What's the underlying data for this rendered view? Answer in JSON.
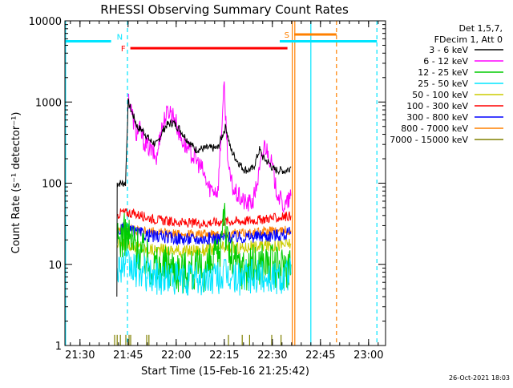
{
  "chart_data": {
    "type": "line",
    "title": "RHESSI Observing Summary Count Rates",
    "xlabel": "Start Time (15-Feb-16 21:25:42)",
    "ylabel": "Count Rate (s⁻¹ detector⁻¹)",
    "yscale": "log",
    "ylim": [
      1,
      10000
    ],
    "xlim_minutes": [
      -4.7,
      95.3
    ],
    "x_ticks": [
      {
        "label": "21:30",
        "t": 0
      },
      {
        "label": "21:45",
        "t": 15
      },
      {
        "label": "22:00",
        "t": 30
      },
      {
        "label": "22:15",
        "t": 45
      },
      {
        "label": "22:30",
        "t": 60
      },
      {
        "label": "22:45",
        "t": 75
      },
      {
        "label": "23:00",
        "t": 90
      }
    ],
    "y_ticks": [
      {
        "label": "1",
        "v": 1
      },
      {
        "label": "10",
        "v": 10
      },
      {
        "label": "100",
        "v": 100
      },
      {
        "label": "1000",
        "v": 1000
      },
      {
        "label": "10000",
        "v": 10000
      }
    ],
    "legend_header": [
      "Det 1,5,7,",
      "FDecim 1, Att 0"
    ],
    "legend_position": "right",
    "series": [
      {
        "name": "3 - 6 keV",
        "color": "#000000",
        "points": [
          [
            11.5,
            4
          ],
          [
            11.6,
            100
          ],
          [
            14.2,
            100
          ],
          [
            15.0,
            1000
          ],
          [
            16.5,
            700
          ],
          [
            18,
            480
          ],
          [
            19.5,
            450
          ],
          [
            22,
            330
          ],
          [
            24,
            300
          ],
          [
            25.5,
            420
          ],
          [
            27,
            520
          ],
          [
            29,
            560
          ],
          [
            31,
            470
          ],
          [
            33,
            360
          ],
          [
            36,
            260
          ],
          [
            40,
            270
          ],
          [
            43,
            270
          ],
          [
            44.5,
            400
          ],
          [
            45.5,
            500
          ],
          [
            47,
            260
          ],
          [
            49,
            190
          ],
          [
            51,
            150
          ],
          [
            52,
            145
          ],
          [
            54,
            150
          ],
          [
            56,
            260
          ],
          [
            57,
            210
          ],
          [
            58,
            190
          ],
          [
            59.5,
            170
          ],
          [
            60,
            150
          ],
          [
            61,
            145
          ],
          [
            62,
            145
          ],
          [
            63,
            145
          ],
          [
            64,
            140
          ],
          [
            65,
            150
          ],
          [
            65.8,
            160
          ]
        ]
      },
      {
        "name": "6 - 12 keV",
        "color": "#ff00ff",
        "points": [
          [
            15.0,
            1200
          ],
          [
            16,
            800
          ],
          [
            17.5,
            400
          ],
          [
            18.5,
            470
          ],
          [
            20,
            320
          ],
          [
            22,
            260
          ],
          [
            24,
            200
          ],
          [
            25,
            420
          ],
          [
            26.5,
            650
          ],
          [
            28,
            800
          ],
          [
            29.5,
            650
          ],
          [
            31,
            400
          ],
          [
            33,
            280
          ],
          [
            36,
            200
          ],
          [
            38,
            150
          ],
          [
            40,
            90
          ],
          [
            43,
            80
          ],
          [
            44.5,
            800
          ],
          [
            45,
            1500
          ],
          [
            45.7,
            400
          ],
          [
            46.5,
            130
          ],
          [
            48,
            80
          ],
          [
            50,
            65
          ],
          [
            52,
            55
          ],
          [
            54,
            60
          ],
          [
            56,
            140
          ],
          [
            57.5,
            300
          ],
          [
            58.5,
            250
          ],
          [
            60,
            160
          ],
          [
            61,
            90
          ],
          [
            62,
            70
          ],
          [
            63,
            55
          ],
          [
            64,
            52
          ],
          [
            65,
            60
          ],
          [
            65.8,
            70
          ]
        ]
      },
      {
        "name": "12 - 25 keV",
        "color": "#00cc00",
        "points": [
          [
            11.6,
            18
          ],
          [
            13,
            22
          ],
          [
            14.5,
            23
          ],
          [
            16,
            20
          ],
          [
            18,
            16
          ],
          [
            20,
            13
          ],
          [
            22,
            10
          ],
          [
            24,
            9.5
          ],
          [
            26,
            9
          ],
          [
            28,
            10
          ],
          [
            30,
            9
          ],
          [
            32,
            8
          ],
          [
            34,
            9
          ],
          [
            36,
            8
          ],
          [
            38,
            8.5
          ],
          [
            40,
            9
          ],
          [
            42,
            11
          ],
          [
            43.5,
            12
          ],
          [
            44.5,
            40
          ],
          [
            45,
            60
          ],
          [
            45.6,
            20
          ],
          [
            47,
            12
          ],
          [
            49,
            10
          ],
          [
            51,
            9
          ],
          [
            53,
            9
          ],
          [
            55,
            10
          ],
          [
            57,
            11
          ],
          [
            59,
            10
          ],
          [
            61,
            9
          ],
          [
            63,
            9.5
          ],
          [
            65.8,
            10
          ]
        ]
      },
      {
        "name": "25 - 50 keV",
        "color": "#00e5ff",
        "points": [
          [
            11.6,
            9
          ],
          [
            13,
            10
          ],
          [
            15,
            9.5
          ],
          [
            17,
            8.5
          ],
          [
            19,
            8
          ],
          [
            21,
            7.5
          ],
          [
            23,
            7
          ],
          [
            25,
            7
          ],
          [
            27,
            6.8
          ],
          [
            29,
            7
          ],
          [
            31,
            6.5
          ],
          [
            33,
            6.5
          ],
          [
            35,
            6.8
          ],
          [
            37,
            6.5
          ],
          [
            39,
            6.5
          ],
          [
            41,
            6.8
          ],
          [
            43,
            7
          ],
          [
            45,
            7.5
          ],
          [
            47,
            7
          ],
          [
            49,
            6.8
          ],
          [
            51,
            6.8
          ],
          [
            53,
            7
          ],
          [
            55,
            7
          ],
          [
            57,
            7.2
          ],
          [
            59,
            7
          ],
          [
            61,
            7
          ],
          [
            63,
            7.2
          ],
          [
            65.8,
            7.5
          ]
        ]
      },
      {
        "name": "50 - 100 keV",
        "color": "#cccc00",
        "points": [
          [
            11.6,
            17
          ],
          [
            13,
            18
          ],
          [
            15,
            18
          ],
          [
            17,
            17
          ],
          [
            19,
            16
          ],
          [
            21,
            15.5
          ],
          [
            23,
            15
          ],
          [
            25,
            15
          ],
          [
            27,
            15
          ],
          [
            29,
            15
          ],
          [
            31,
            14.5
          ],
          [
            33,
            14.5
          ],
          [
            35,
            15
          ],
          [
            37,
            15
          ],
          [
            39,
            15
          ],
          [
            41,
            15.5
          ],
          [
            43,
            16
          ],
          [
            45,
            16
          ],
          [
            47,
            16
          ],
          [
            49,
            16
          ],
          [
            51,
            16
          ],
          [
            53,
            16.5
          ],
          [
            55,
            16.5
          ],
          [
            57,
            17
          ],
          [
            59,
            17
          ],
          [
            61,
            17
          ],
          [
            63,
            17.5
          ],
          [
            65.8,
            18
          ]
        ]
      },
      {
        "name": "100 - 300 keV",
        "color": "#ff0000",
        "points": [
          [
            11.6,
            40
          ],
          [
            13,
            44
          ],
          [
            15,
            43
          ],
          [
            17,
            42
          ],
          [
            19,
            40
          ],
          [
            21,
            38
          ],
          [
            23,
            36
          ],
          [
            25,
            35
          ],
          [
            27,
            34
          ],
          [
            29,
            33
          ],
          [
            31,
            33
          ],
          [
            33,
            32
          ],
          [
            35,
            32
          ],
          [
            37,
            32
          ],
          [
            39,
            32
          ],
          [
            41,
            33
          ],
          [
            43,
            33
          ],
          [
            45,
            34
          ],
          [
            47,
            34
          ],
          [
            49,
            34
          ],
          [
            51,
            34
          ],
          [
            53,
            35
          ],
          [
            55,
            35
          ],
          [
            57,
            36
          ],
          [
            59,
            37
          ],
          [
            61,
            37
          ],
          [
            63,
            38
          ],
          [
            65.8,
            40
          ]
        ]
      },
      {
        "name": "300 - 800 keV",
        "color": "#0000ff",
        "points": [
          [
            11.6,
            25
          ],
          [
            13,
            27
          ],
          [
            15,
            26
          ],
          [
            17,
            25
          ],
          [
            19,
            24
          ],
          [
            21,
            23
          ],
          [
            23,
            22
          ],
          [
            25,
            22
          ],
          [
            27,
            21.5
          ],
          [
            29,
            21
          ],
          [
            31,
            21
          ],
          [
            33,
            20.5
          ],
          [
            35,
            20.5
          ],
          [
            37,
            20.5
          ],
          [
            39,
            20.5
          ],
          [
            41,
            21
          ],
          [
            43,
            21
          ],
          [
            45,
            21.5
          ],
          [
            47,
            21.5
          ],
          [
            49,
            21.5
          ],
          [
            51,
            21.5
          ],
          [
            53,
            22
          ],
          [
            55,
            22
          ],
          [
            57,
            22.5
          ],
          [
            59,
            22.5
          ],
          [
            61,
            23
          ],
          [
            63,
            23
          ],
          [
            65.8,
            24
          ]
        ]
      },
      {
        "name": "800 - 7000 keV",
        "color": "#ff8000",
        "points": [
          [
            11.6,
            27
          ],
          [
            13,
            28.5
          ],
          [
            15,
            28
          ],
          [
            17,
            27
          ],
          [
            19,
            26
          ],
          [
            21,
            25.5
          ],
          [
            23,
            25
          ],
          [
            25,
            24.5
          ],
          [
            27,
            24
          ],
          [
            29,
            24
          ],
          [
            31,
            23.5
          ],
          [
            33,
            23.5
          ],
          [
            35,
            23.5
          ],
          [
            37,
            23.5
          ],
          [
            39,
            23.5
          ],
          [
            41,
            24
          ],
          [
            43,
            24
          ],
          [
            45,
            24
          ],
          [
            47,
            24
          ],
          [
            49,
            24
          ],
          [
            51,
            24.5
          ],
          [
            53,
            24.5
          ],
          [
            55,
            25
          ],
          [
            57,
            25
          ],
          [
            59,
            25.5
          ],
          [
            61,
            25.5
          ],
          [
            63,
            26
          ],
          [
            65.8,
            26
          ]
        ]
      },
      {
        "name": "7000 - 15000 keV",
        "color": "#808000",
        "spikes": [
          10.8,
          11.6,
          12.6,
          14.3,
          15.3,
          15.8,
          20.8,
          21.5,
          46.3,
          50.6,
          52.9,
          59.8,
          62.7
        ],
        "spike_top": 1.35
      }
    ],
    "flags": [
      {
        "label": "N",
        "color": "#00e5ff",
        "level": 5600,
        "segments": [
          [
            -4.7,
            9.7
          ],
          [
            62.3,
            92.6
          ]
        ]
      },
      {
        "label": "F",
        "color": "#ff0000",
        "level": 4600,
        "segments": [
          [
            15.7,
            64.7
          ]
        ]
      },
      {
        "label": "S",
        "color": "#ff8000",
        "level": 6800,
        "segments": [
          [
            66.8,
            80
          ]
        ]
      }
    ],
    "markers": [
      {
        "color": "#00e5ff",
        "style": "solid",
        "t": -4.5
      },
      {
        "color": "#00e5ff",
        "style": "dashed",
        "t": 14.8
      },
      {
        "color": "#ff8000",
        "style": "solid",
        "t": 66.2
      },
      {
        "color": "#ff8000",
        "style": "solid",
        "t": 67.0
      },
      {
        "color": "#00e5ff",
        "style": "solid",
        "t": 72.0
      },
      {
        "color": "#ff8000",
        "style": "dashed",
        "t": 80.0
      },
      {
        "color": "#00e5ff",
        "style": "dashed",
        "t": 92.6
      }
    ],
    "footer_date": "26-Oct-2021 18:03"
  }
}
